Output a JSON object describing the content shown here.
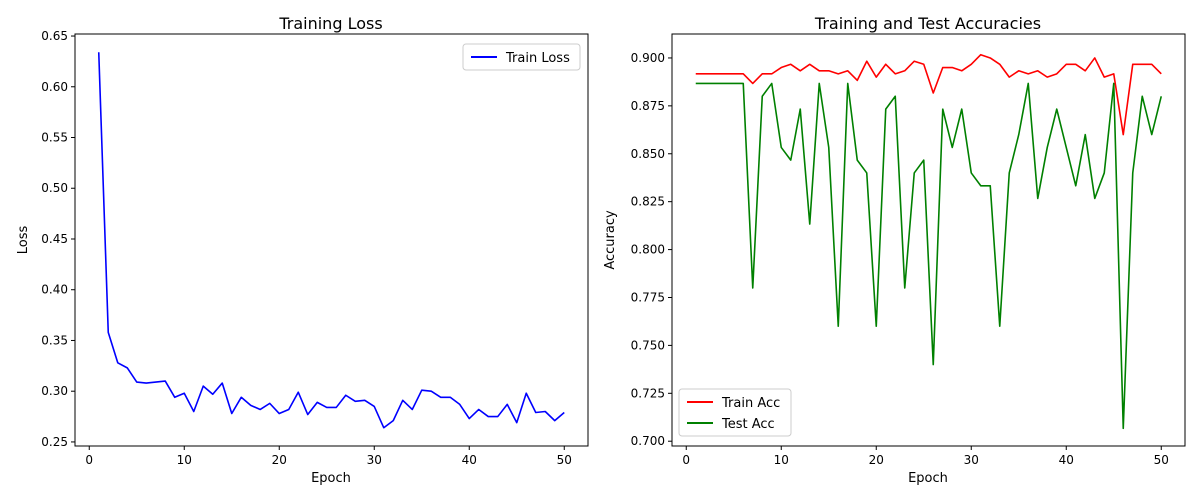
{
  "chart_data": [
    {
      "type": "line",
      "title": "Training Loss",
      "xlabel": "Epoch",
      "ylabel": "Loss",
      "xlim": [
        -1.5,
        52.5
      ],
      "ylim": [
        0.246,
        0.652
      ],
      "xticks": [
        0,
        10,
        20,
        30,
        40,
        50
      ],
      "yticks": [
        0.25,
        0.3,
        0.35,
        0.4,
        0.45,
        0.5,
        0.55,
        0.6,
        0.65
      ],
      "grid": false,
      "legend_position": "top-right",
      "x": [
        1,
        2,
        3,
        4,
        5,
        6,
        7,
        8,
        9,
        10,
        11,
        12,
        13,
        14,
        15,
        16,
        17,
        18,
        19,
        20,
        21,
        22,
        23,
        24,
        25,
        26,
        27,
        28,
        29,
        30,
        31,
        32,
        33,
        34,
        35,
        36,
        37,
        38,
        39,
        40,
        41,
        42,
        43,
        44,
        45,
        46,
        47,
        48,
        49,
        50
      ],
      "series": [
        {
          "name": "Train Loss",
          "color": "#0000ff",
          "values": [
            0.634,
            0.358,
            0.328,
            0.323,
            0.309,
            0.308,
            0.309,
            0.31,
            0.294,
            0.298,
            0.28,
            0.305,
            0.297,
            0.308,
            0.278,
            0.294,
            0.286,
            0.282,
            0.288,
            0.278,
            0.282,
            0.299,
            0.277,
            0.289,
            0.284,
            0.284,
            0.296,
            0.29,
            0.291,
            0.285,
            0.264,
            0.271,
            0.291,
            0.282,
            0.301,
            0.3,
            0.294,
            0.294,
            0.287,
            0.273,
            0.282,
            0.275,
            0.275,
            0.287,
            0.269,
            0.298,
            0.279,
            0.28,
            0.271,
            0.279
          ]
        }
      ]
    },
    {
      "type": "line",
      "title": "Training and Test Accuracies",
      "xlabel": "Epoch",
      "ylabel": "Accuracy",
      "xlim": [
        -1.5,
        52.5
      ],
      "ylim": [
        0.6975,
        0.9125
      ],
      "xticks": [
        0,
        10,
        20,
        30,
        40,
        50
      ],
      "yticks": [
        0.7,
        0.725,
        0.75,
        0.775,
        0.8,
        0.825,
        0.85,
        0.875,
        0.9
      ],
      "grid": false,
      "legend_position": "bottom-left",
      "x": [
        1,
        2,
        3,
        4,
        5,
        6,
        7,
        8,
        9,
        10,
        11,
        12,
        13,
        14,
        15,
        16,
        17,
        18,
        19,
        20,
        21,
        22,
        23,
        24,
        25,
        26,
        27,
        28,
        29,
        30,
        31,
        32,
        33,
        34,
        35,
        36,
        37,
        38,
        39,
        40,
        41,
        42,
        43,
        44,
        45,
        46,
        47,
        48,
        49,
        50
      ],
      "series": [
        {
          "name": "Train Acc",
          "color": "#ff0000",
          "values": [
            0.8917,
            0.8917,
            0.8917,
            0.8917,
            0.8917,
            0.8917,
            0.8867,
            0.8917,
            0.8917,
            0.895,
            0.8967,
            0.8933,
            0.8967,
            0.8933,
            0.8933,
            0.8917,
            0.8933,
            0.8883,
            0.8983,
            0.89,
            0.8967,
            0.8917,
            0.8933,
            0.8983,
            0.8967,
            0.8817,
            0.895,
            0.895,
            0.8933,
            0.8967,
            0.9017,
            0.9,
            0.8967,
            0.89,
            0.8933,
            0.8917,
            0.8933,
            0.89,
            0.8917,
            0.8967,
            0.8967,
            0.8933,
            0.9,
            0.89,
            0.8917,
            0.86,
            0.8967,
            0.8967,
            0.8967,
            0.8917
          ]
        },
        {
          "name": "Test Acc",
          "color": "#008000",
          "values": [
            0.8867,
            0.8867,
            0.8867,
            0.8867,
            0.8867,
            0.8867,
            0.78,
            0.88,
            0.8867,
            0.8533,
            0.8467,
            0.8733,
            0.8133,
            0.8867,
            0.8533,
            0.76,
            0.8867,
            0.8467,
            0.84,
            0.76,
            0.8733,
            0.88,
            0.78,
            0.84,
            0.8467,
            0.74,
            0.8733,
            0.8533,
            0.8733,
            0.84,
            0.8333,
            0.8333,
            0.76,
            0.84,
            0.86,
            0.8867,
            0.8267,
            0.8533,
            0.8733,
            0.8533,
            0.8333,
            0.86,
            0.8267,
            0.84,
            0.8867,
            0.7067,
            0.84,
            0.88,
            0.86,
            0.88
          ]
        }
      ]
    }
  ]
}
